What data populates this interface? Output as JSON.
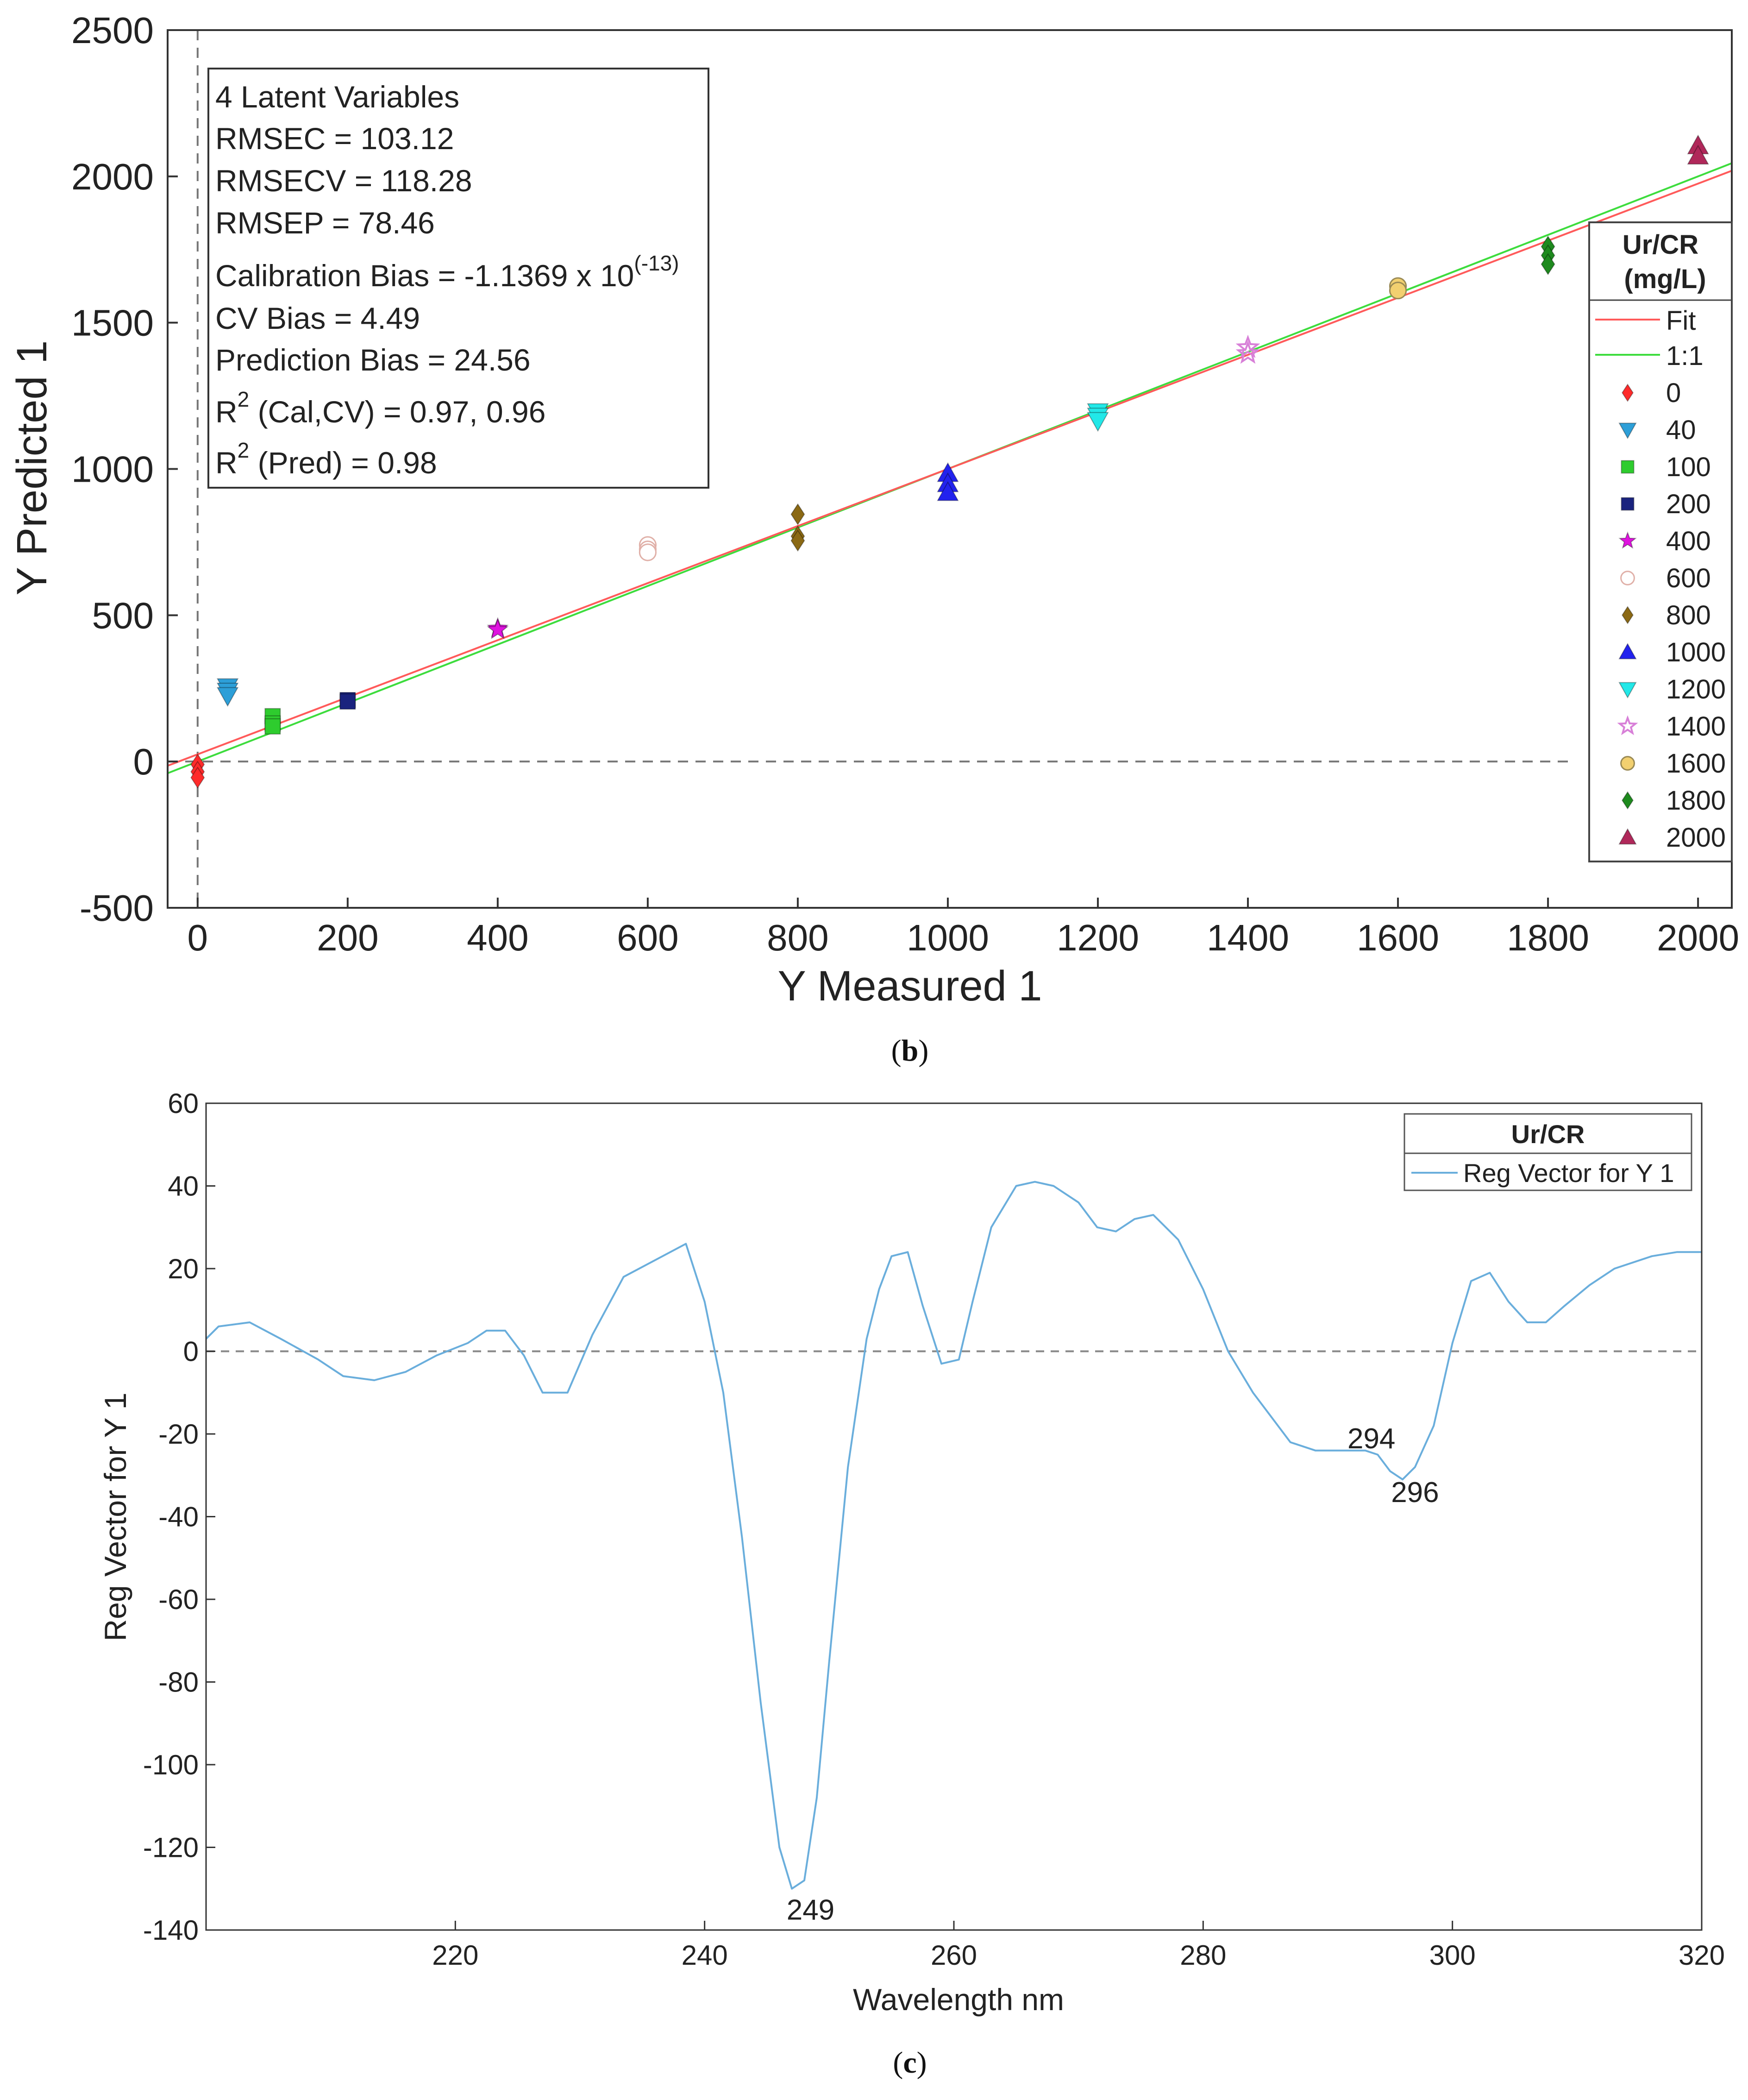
{
  "charts": [
    {
      "type": "scatter",
      "panel_label": "b",
      "xlabel": "Y Measured 1",
      "ylabel": "Y Predicted 1",
      "xlim": [
        -40,
        2045
      ],
      "ylim": [
        -500,
        2500
      ],
      "xticks": [
        0,
        200,
        400,
        600,
        800,
        1000,
        1200,
        1400,
        1600,
        1800,
        2000
      ],
      "yticks": [
        -500,
        0,
        500,
        1000,
        1500,
        2000,
        2500
      ],
      "stats": {
        "line1": "4 Latent Variables",
        "line2": "RMSEC = 103.12",
        "line3": "RMSECV = 118.28",
        "line4": "RMSEP = 78.46",
        "line5_main": "Calibration Bias = -1.1369 x 10",
        "line5_sup": "(-13)",
        "line6": "CV Bias = 4.49",
        "line7": "Prediction Bias = 24.56",
        "line8_pre": "R",
        "line8_sup": "2",
        "line8_post": " (Cal,CV) = 0.97, 0.96",
        "line9_pre": "R",
        "line9_sup": "2",
        "line9_post": " (Pred) = 0.98"
      },
      "legend": {
        "title1": "Ur/CR",
        "title2": "(mg/L)",
        "fit_label": "Fit",
        "one_label": "1:1"
      },
      "lines": {
        "fit": {
          "intercept": 24.56,
          "slope": 0.9754,
          "color": "#ff5a5a"
        },
        "one_to_one": {
          "intercept": 0,
          "slope": 1,
          "color": "#3ddc3d"
        }
      },
      "series": [
        {
          "name": "0",
          "marker": "diamond",
          "color": "#ff2b2b",
          "points": [
            [
              0,
              -10
            ],
            [
              0,
              -35
            ],
            [
              0,
              -55
            ]
          ]
        },
        {
          "name": "40",
          "marker": "triangle-down",
          "color": "#2d9fd8",
          "points": [
            [
              40,
              255
            ],
            [
              40,
              240
            ],
            [
              40,
              225
            ]
          ]
        },
        {
          "name": "100",
          "marker": "square",
          "color": "#2ecc2e",
          "points": [
            [
              100,
              155
            ],
            [
              100,
              130
            ],
            [
              100,
              120
            ]
          ]
        },
        {
          "name": "200",
          "marker": "square",
          "color": "#1a237e",
          "points": [
            [
              200,
              210
            ],
            [
              200,
              205
            ]
          ]
        },
        {
          "name": "400",
          "marker": "star",
          "color": "#e012e0",
          "points": [
            [
              400,
              455
            ],
            [
              400,
              450
            ]
          ]
        },
        {
          "name": "600",
          "marker": "circle-open",
          "color": "#e0b0a8",
          "points": [
            [
              600,
              740
            ],
            [
              600,
              725
            ],
            [
              600,
              715
            ]
          ]
        },
        {
          "name": "800",
          "marker": "diamond",
          "color": "#8b6914",
          "points": [
            [
              800,
              845
            ],
            [
              800,
              770
            ],
            [
              800,
              755
            ]
          ]
        },
        {
          "name": "1000",
          "marker": "triangle-up",
          "color": "#2222ee",
          "points": [
            [
              1000,
              985
            ],
            [
              1000,
              950
            ],
            [
              1000,
              920
            ]
          ]
        },
        {
          "name": "1200",
          "marker": "triangle-down",
          "color": "#22e8e8",
          "points": [
            [
              1200,
              1195
            ],
            [
              1200,
              1180
            ],
            [
              1200,
              1165
            ]
          ]
        },
        {
          "name": "1400",
          "marker": "star-open",
          "color": "#d880d8",
          "points": [
            [
              1400,
              1415
            ],
            [
              1400,
              1395
            ]
          ]
        },
        {
          "name": "1600",
          "marker": "circle",
          "color": "#f2d070",
          "points": [
            [
              1600,
              1625
            ],
            [
              1600,
              1610
            ]
          ]
        },
        {
          "name": "1800",
          "marker": "diamond",
          "color": "#1e8a1e",
          "points": [
            [
              1800,
              1760
            ],
            [
              1800,
              1730
            ],
            [
              1800,
              1700
            ]
          ]
        },
        {
          "name": "2000",
          "marker": "triangle-up",
          "color": "#b0285a",
          "points": [
            [
              2000,
              2105
            ],
            [
              2000,
              2070
            ]
          ]
        }
      ]
    },
    {
      "type": "line",
      "panel_label": "c",
      "xlabel": "Wavelength nm",
      "ylabel": "Reg Vector for Y 1",
      "xlim": [
        200,
        320
      ],
      "ylim": [
        -140,
        60
      ],
      "xticks": [
        220,
        240,
        260,
        280,
        300,
        320
      ],
      "yticks": [
        -140,
        -120,
        -100,
        -80,
        -60,
        -40,
        -20,
        0,
        20,
        40,
        60
      ],
      "legend": {
        "title": "Ur/CR",
        "entry": "Reg Vector for Y 1"
      },
      "color": "#6aaedc",
      "x": [
        200,
        201,
        203.5,
        206,
        209,
        211,
        213.5,
        216,
        218.5,
        221,
        222.5,
        224,
        225.5,
        227,
        229,
        231,
        233.5,
        236,
        238.5,
        240,
        241.5,
        243,
        244.5,
        246,
        247,
        248,
        249,
        250,
        251.5,
        253,
        254,
        255,
        256.3,
        257.5,
        259,
        260.4,
        261.5,
        263,
        265,
        266.5,
        268,
        270,
        271.5,
        273,
        274.5,
        276,
        278,
        280,
        282,
        284,
        285.5,
        287,
        289,
        291,
        293,
        294,
        295,
        296,
        297,
        298.5,
        300,
        301.5,
        303,
        304.5,
        306,
        307.5,
        309,
        311,
        313,
        316,
        318,
        320
      ],
      "y": [
        3,
        6,
        7,
        3,
        -2,
        -6,
        -7,
        -5,
        -1,
        2,
        5,
        5,
        -1,
        -10,
        -10,
        4,
        18,
        22,
        26,
        12,
        -10,
        -45,
        -85,
        -120,
        -130,
        -128,
        -108,
        -75,
        -28,
        3,
        15,
        23,
        24,
        11,
        -3,
        -2,
        12,
        30,
        40,
        41,
        40,
        36,
        30,
        29,
        32,
        33,
        27,
        15,
        0,
        -10,
        -16,
        -22,
        -24,
        -24,
        -24,
        -25,
        -29,
        -31,
        -28,
        -18,
        2,
        17,
        19,
        12,
        7,
        7,
        11,
        16,
        20,
        23,
        24,
        24
      ],
      "annotations": [
        {
          "label": "249",
          "x": 248.5,
          "y": -135
        },
        {
          "label": "294",
          "x": 293.5,
          "y": -21
        },
        {
          "label": "296",
          "x": 297,
          "y": -34
        }
      ]
    }
  ]
}
